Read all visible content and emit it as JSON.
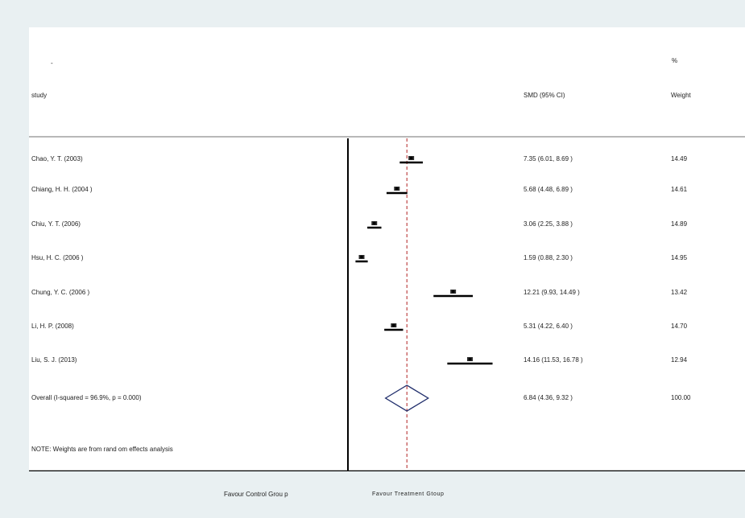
{
  "header": {
    "dash": "-",
    "study_label": "study",
    "effect_label": "SMD (95% CI)",
    "weight_pct": "%",
    "weight_label": "Weight"
  },
  "footnote": "NOTE: Weights are from rand om effects analysis",
  "axis_left_label": "Favour Control Grou p",
  "axis_right_label": "Favour Treatment Gtoup",
  "colors": {
    "marker": "#000000",
    "overall_diamond": "#1f2d6b",
    "overall_line": "#b22222"
  },
  "chart_data": {
    "type": "forest",
    "xlim": [
      -20,
      20
    ],
    "x_ticks": [
      -20,
      -15,
      -10,
      -5,
      0,
      5,
      10,
      15,
      20
    ],
    "null_line": 0,
    "overall_line": 6.84,
    "studies": [
      {
        "study": "Chao, Y. T. (2003)",
        "smd": 7.35,
        "lower": 6.01,
        "upper": 8.69,
        "ci_text": "7.35 (6.01, 8.69 )",
        "weight": "14.49"
      },
      {
        "study": "Chiang, H. H. (2004 )",
        "smd": 5.68,
        "lower": 4.48,
        "upper": 6.89,
        "ci_text": "5.68 (4.48, 6.89 )",
        "weight": "14.61"
      },
      {
        "study": "Chiu, Y. T. (2006)",
        "smd": 3.06,
        "lower": 2.25,
        "upper": 3.88,
        "ci_text": "3.06 (2.25, 3.88 )",
        "weight": "14.89"
      },
      {
        "study": "Hsu, H. C. (2006 )",
        "smd": 1.59,
        "lower": 0.88,
        "upper": 2.3,
        "ci_text": "1.59 (0.88, 2.30 )",
        "weight": "14.95"
      },
      {
        "study": "Chung, Y. C. (2006 )",
        "smd": 12.21,
        "lower": 9.93,
        "upper": 14.49,
        "ci_text": "12.21 (9.93, 14.49 )",
        "weight": "13.42"
      },
      {
        "study": "Li, H. P. (2008)",
        "smd": 5.31,
        "lower": 4.22,
        "upper": 6.4,
        "ci_text": "5.31 (4.22, 6.40 )",
        "weight": "14.70"
      },
      {
        "study": "Liu, S. J. (2013)",
        "smd": 14.16,
        "lower": 11.53,
        "upper": 16.78,
        "ci_text": "14.16 (11.53, 16.78 )",
        "weight": "12.94"
      }
    ],
    "overall": {
      "label": "Overall (I-squared = 96.9%, p = 0.000)",
      "smd": 6.84,
      "lower": 4.36,
      "upper": 9.32,
      "ci_text": "6.84 (4.36, 9.32 )",
      "weight": "100.00"
    }
  }
}
